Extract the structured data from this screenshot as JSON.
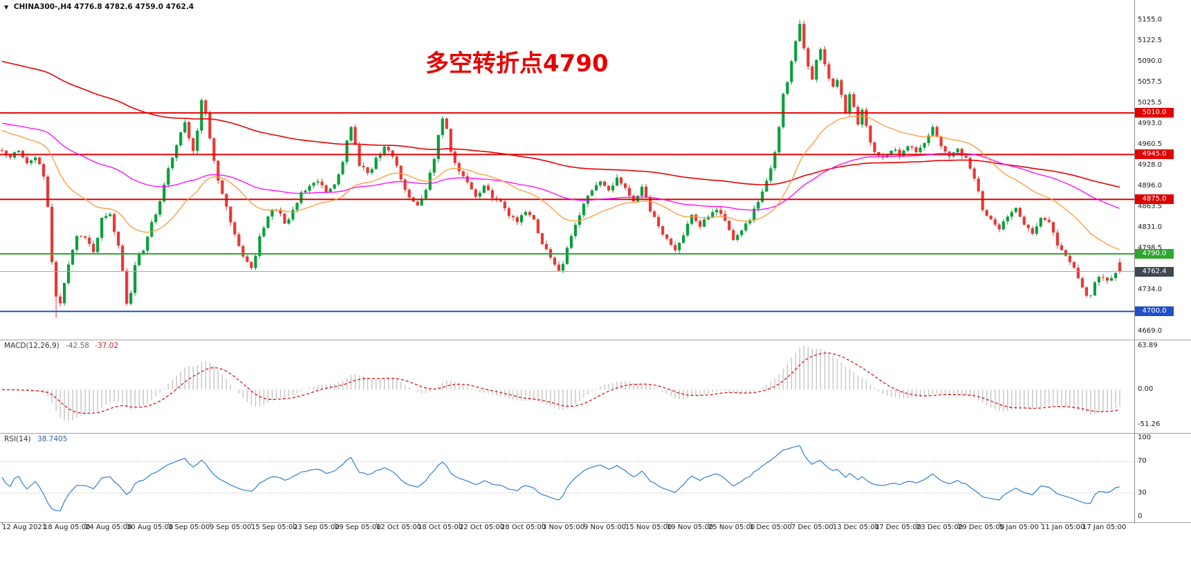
{
  "window": {
    "symbol_button": "▼",
    "symbol_line": "CHINA300-,H4  4776.8 4782.6 4759.0 4762.4"
  },
  "annotation": {
    "text": "多空转折点4790",
    "color": "#e60000"
  },
  "macd_panel": {
    "label": "MACD(12,26,9)",
    "value1": "-42.58",
    "value2": "-37.02",
    "axis_labels": [
      "63.89",
      "0.00",
      "-51.26"
    ]
  },
  "rsi_panel": {
    "label": "RSI(14)",
    "value": "38.7405",
    "axis_labels": [
      "100",
      "70",
      "30",
      "0"
    ],
    "level_values": [
      100,
      70,
      30,
      0
    ]
  },
  "colors": {
    "candle_up": "#089f3a",
    "candle_down": "#e53935",
    "ma_fast_orange": "#ff9933",
    "ma_mid_magenta": "#ff00ff",
    "ma_slow_red": "#e60000",
    "macd_histogram": "#c4c4c4",
    "macd_signal": "#d50000",
    "rsi_line": "#2e7fd1",
    "rsi_level_line": "#c8c8c8",
    "bid_line": "#8faecc",
    "current_price_badge_bg": "#3f4850",
    "annotation_red": "#e60000",
    "panel_separator": "#a0a0a0",
    "axis_text": "#1a1a1a"
  },
  "chart_data": {
    "type": "candlestick",
    "symbol": "CHINA300-",
    "timeframe": "H4",
    "last_ohlc": {
      "open": 4776.8,
      "high": 4782.6,
      "low": 4759.0,
      "close": 4762.4
    },
    "current_price": {
      "value": 4762.4,
      "label": "4762.4"
    },
    "visible_high": 5155.0,
    "visible_low": 4690.0,
    "price_axis_range": [
      4656,
      5186
    ],
    "price_axis_labels": [
      "5155.0",
      "5122.5",
      "5090.0",
      "5057.5",
      "5025.5",
      "4993.0",
      "4960.5",
      "4928.0",
      "4896.0",
      "4863.5",
      "4831.0",
      "4798.5",
      "4734.0",
      "4669.0"
    ],
    "horizontal_levels": [
      {
        "value": 5010.0,
        "label": "5010.0",
        "color": "#e00000"
      },
      {
        "value": 4945.0,
        "label": "4945.0",
        "color": "#e00000"
      },
      {
        "value": 4875.0,
        "label": "4875.0",
        "color": "#e00000"
      },
      {
        "value": 4790.0,
        "label": "4790.0",
        "color": "#2fa62f"
      },
      {
        "value": 4700.0,
        "label": "4700.0",
        "color": "#2050c8"
      }
    ],
    "bars": 270,
    "extremes": {
      "high_bar": 192,
      "high": 5155.0,
      "low_bar": 13,
      "low": 4690.0
    },
    "close_anchors": [
      [
        0,
        4948
      ],
      [
        2,
        4940
      ],
      [
        4,
        4954
      ],
      [
        6,
        4928
      ],
      [
        8,
        4944
      ],
      [
        10,
        4908
      ],
      [
        11,
        4862
      ],
      [
        12,
        4778
      ],
      [
        13,
        4722
      ],
      [
        14,
        4710
      ],
      [
        15,
        4748
      ],
      [
        16,
        4772
      ],
      [
        18,
        4816
      ],
      [
        20,
        4812
      ],
      [
        22,
        4792
      ],
      [
        24,
        4844
      ],
      [
        26,
        4856
      ],
      [
        27,
        4822
      ],
      [
        28,
        4800
      ],
      [
        29,
        4760
      ],
      [
        30,
        4716
      ],
      [
        31,
        4732
      ],
      [
        32,
        4776
      ],
      [
        34,
        4798
      ],
      [
        36,
        4836
      ],
      [
        38,
        4872
      ],
      [
        40,
        4922
      ],
      [
        42,
        4962
      ],
      [
        44,
        4996
      ],
      [
        45,
        4974
      ],
      [
        46,
        4950
      ],
      [
        47,
        4986
      ],
      [
        48,
        5032
      ],
      [
        49,
        5008
      ],
      [
        50,
        4968
      ],
      [
        51,
        4938
      ],
      [
        52,
        4904
      ],
      [
        54,
        4866
      ],
      [
        56,
        4820
      ],
      [
        58,
        4786
      ],
      [
        60,
        4768
      ],
      [
        61,
        4790
      ],
      [
        62,
        4820
      ],
      [
        64,
        4848
      ],
      [
        66,
        4862
      ],
      [
        68,
        4836
      ],
      [
        70,
        4858
      ],
      [
        72,
        4882
      ],
      [
        74,
        4900
      ],
      [
        76,
        4906
      ],
      [
        78,
        4886
      ],
      [
        80,
        4898
      ],
      [
        82,
        4932
      ],
      [
        83,
        4968
      ],
      [
        84,
        4992
      ],
      [
        85,
        4960
      ],
      [
        86,
        4930
      ],
      [
        88,
        4914
      ],
      [
        90,
        4936
      ],
      [
        92,
        4956
      ],
      [
        94,
        4940
      ],
      [
        96,
        4908
      ],
      [
        98,
        4878
      ],
      [
        100,
        4862
      ],
      [
        102,
        4892
      ],
      [
        104,
        4942
      ],
      [
        105,
        4976
      ],
      [
        106,
        5002
      ],
      [
        107,
        4984
      ],
      [
        108,
        4950
      ],
      [
        110,
        4920
      ],
      [
        112,
        4900
      ],
      [
        114,
        4882
      ],
      [
        116,
        4896
      ],
      [
        118,
        4876
      ],
      [
        120,
        4870
      ],
      [
        122,
        4850
      ],
      [
        124,
        4838
      ],
      [
        126,
        4858
      ],
      [
        128,
        4840
      ],
      [
        130,
        4808
      ],
      [
        132,
        4788
      ],
      [
        134,
        4760
      ],
      [
        135,
        4772
      ],
      [
        136,
        4800
      ],
      [
        138,
        4832
      ],
      [
        140,
        4866
      ],
      [
        142,
        4892
      ],
      [
        144,
        4906
      ],
      [
        146,
        4886
      ],
      [
        148,
        4906
      ],
      [
        150,
        4890
      ],
      [
        152,
        4870
      ],
      [
        154,
        4896
      ],
      [
        156,
        4860
      ],
      [
        158,
        4832
      ],
      [
        160,
        4810
      ],
      [
        162,
        4796
      ],
      [
        164,
        4818
      ],
      [
        166,
        4850
      ],
      [
        168,
        4836
      ],
      [
        170,
        4850
      ],
      [
        172,
        4862
      ],
      [
        174,
        4840
      ],
      [
        176,
        4812
      ],
      [
        178,
        4830
      ],
      [
        180,
        4846
      ],
      [
        182,
        4872
      ],
      [
        184,
        4904
      ],
      [
        186,
        4950
      ],
      [
        187,
        4986
      ],
      [
        188,
        5036
      ],
      [
        189,
        5060
      ],
      [
        190,
        5092
      ],
      [
        191,
        5126
      ],
      [
        192,
        5148
      ],
      [
        193,
        5112
      ],
      [
        194,
        5086
      ],
      [
        195,
        5064
      ],
      [
        196,
        5092
      ],
      [
        197,
        5106
      ],
      [
        198,
        5086
      ],
      [
        199,
        5062
      ],
      [
        200,
        5048
      ],
      [
        201,
        5062
      ],
      [
        202,
        5036
      ],
      [
        203,
        5010
      ],
      [
        204,
        5042
      ],
      [
        205,
        5022
      ],
      [
        206,
        4992
      ],
      [
        207,
        5016
      ],
      [
        208,
        4986
      ],
      [
        209,
        4962
      ],
      [
        210,
        4950
      ],
      [
        212,
        4938
      ],
      [
        214,
        4954
      ],
      [
        216,
        4944
      ],
      [
        218,
        4958
      ],
      [
        220,
        4948
      ],
      [
        222,
        4966
      ],
      [
        224,
        4986
      ],
      [
        226,
        4960
      ],
      [
        228,
        4942
      ],
      [
        230,
        4956
      ],
      [
        232,
        4938
      ],
      [
        234,
        4906
      ],
      [
        236,
        4862
      ],
      [
        238,
        4842
      ],
      [
        240,
        4828
      ],
      [
        242,
        4846
      ],
      [
        244,
        4858
      ],
      [
        246,
        4832
      ],
      [
        248,
        4822
      ],
      [
        250,
        4850
      ],
      [
        252,
        4838
      ],
      [
        254,
        4806
      ],
      [
        256,
        4790
      ],
      [
        258,
        4768
      ],
      [
        260,
        4738
      ],
      [
        261,
        4722
      ],
      [
        262,
        4728
      ],
      [
        263,
        4746
      ],
      [
        264,
        4754
      ],
      [
        266,
        4748
      ],
      [
        268,
        4760
      ],
      [
        269,
        4762.4
      ]
    ],
    "indicators": {
      "macd": {
        "params": "12,26,9",
        "value": -42.58,
        "signal": -37.02,
        "axis": [
          63.89,
          0.0,
          -51.26
        ]
      },
      "rsi": {
        "period": 14,
        "value": 38.7405,
        "levels": [
          70,
          30
        ],
        "axis": [
          100,
          70,
          30,
          0
        ]
      }
    },
    "x_axis_labels": [
      "12 Aug 2021",
      "18 Aug 05:00",
      "24 Aug 05:00",
      "30 Aug 05:00",
      "3 Sep 05:00",
      "9 Sep 05:00",
      "15 Sep 05:00",
      "23 Sep 05:00",
      "29 Sep 05:00",
      "12 Oct 05:00",
      "18 Oct 05:00",
      "22 Oct 05:00",
      "28 Oct 05:00",
      "3 Nov 05:00",
      "9 Nov 05:00",
      "15 Nov 05:00",
      "19 Nov 05:00",
      "25 Nov 05:00",
      "1 Dec 05:00",
      "7 Dec 05:00",
      "13 Dec 05:00",
      "17 Dec 05:00",
      "23 Dec 05:00",
      "29 Dec 05:00",
      "5 Jan 05:00",
      "11 Jan 05:00",
      "17 Jan 05:00"
    ]
  }
}
